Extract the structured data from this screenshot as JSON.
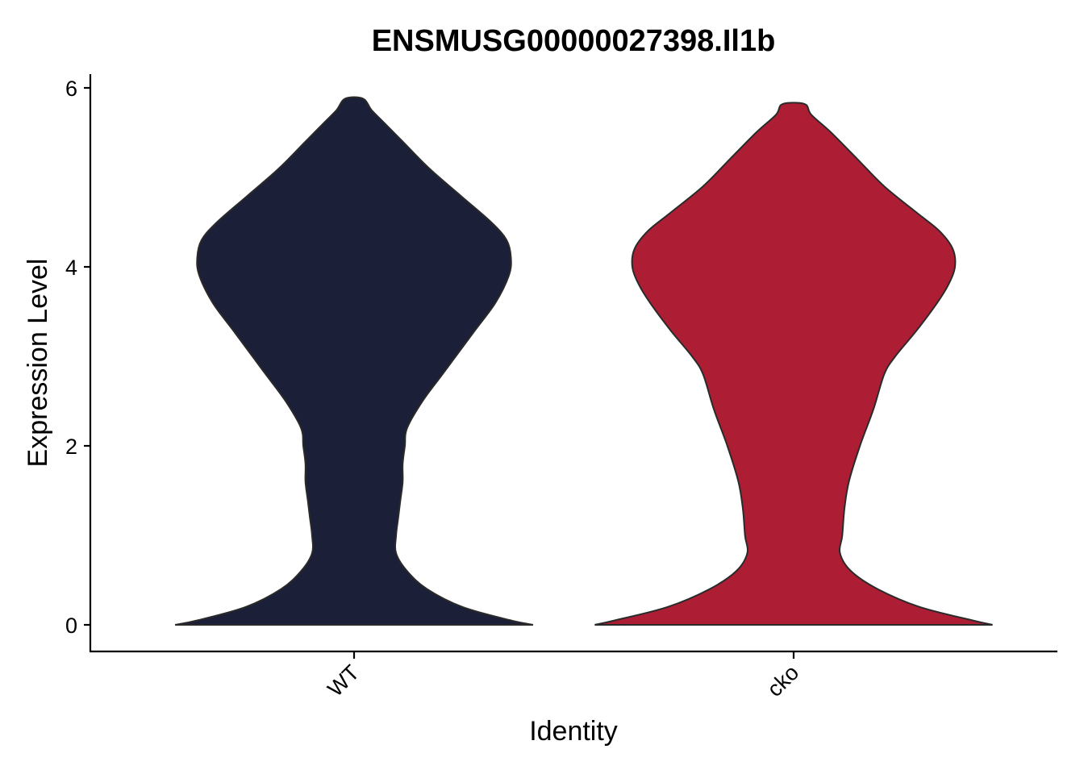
{
  "chart_data": {
    "type": "violin",
    "title": "ENSMUSG00000027398.Il1b",
    "xlabel": "Identity",
    "ylabel": "Expression Level",
    "categories": [
      "WT",
      "cko"
    ],
    "ylim": [
      -0.3,
      6.2
    ],
    "yticks": [
      0,
      2,
      4,
      6
    ],
    "grid": false,
    "legend": "none",
    "series": [
      {
        "category": "WT",
        "color": "#1b1f37",
        "y_min": 0.0,
        "y_max": 5.88,
        "density_profile": [
          [
            0.0,
            0.81
          ],
          [
            0.05,
            0.71
          ],
          [
            0.2,
            0.49
          ],
          [
            0.4,
            0.33
          ],
          [
            0.6,
            0.24
          ],
          [
            0.8,
            0.19
          ],
          [
            1.0,
            0.19
          ],
          [
            1.2,
            0.2
          ],
          [
            1.4,
            0.21
          ],
          [
            1.6,
            0.22
          ],
          [
            1.8,
            0.22
          ],
          [
            2.0,
            0.23
          ],
          [
            2.2,
            0.24
          ],
          [
            2.5,
            0.31
          ],
          [
            2.8,
            0.4
          ],
          [
            3.0,
            0.46
          ],
          [
            3.3,
            0.55
          ],
          [
            3.6,
            0.64
          ],
          [
            3.9,
            0.7
          ],
          [
            4.1,
            0.71
          ],
          [
            4.3,
            0.69
          ],
          [
            4.5,
            0.62
          ],
          [
            4.8,
            0.48
          ],
          [
            5.1,
            0.34
          ],
          [
            5.4,
            0.22
          ],
          [
            5.6,
            0.14
          ],
          [
            5.75,
            0.08
          ],
          [
            5.88,
            0.04
          ]
        ]
      },
      {
        "category": "cko",
        "color": "#ad1e35",
        "y_min": 0.0,
        "y_max": 5.82,
        "density_profile": [
          [
            0.0,
            0.9
          ],
          [
            0.05,
            0.81
          ],
          [
            0.2,
            0.57
          ],
          [
            0.4,
            0.38
          ],
          [
            0.6,
            0.26
          ],
          [
            0.8,
            0.21
          ],
          [
            1.0,
            0.22
          ],
          [
            1.3,
            0.23
          ],
          [
            1.6,
            0.25
          ],
          [
            2.0,
            0.3
          ],
          [
            2.4,
            0.36
          ],
          [
            2.8,
            0.41
          ],
          [
            3.0,
            0.46
          ],
          [
            3.3,
            0.56
          ],
          [
            3.6,
            0.65
          ],
          [
            3.8,
            0.7
          ],
          [
            4.0,
            0.73
          ],
          [
            4.2,
            0.72
          ],
          [
            4.4,
            0.66
          ],
          [
            4.6,
            0.56
          ],
          [
            4.9,
            0.41
          ],
          [
            5.2,
            0.29
          ],
          [
            5.5,
            0.17
          ],
          [
            5.7,
            0.08
          ],
          [
            5.82,
            0.05
          ]
        ]
      }
    ]
  }
}
